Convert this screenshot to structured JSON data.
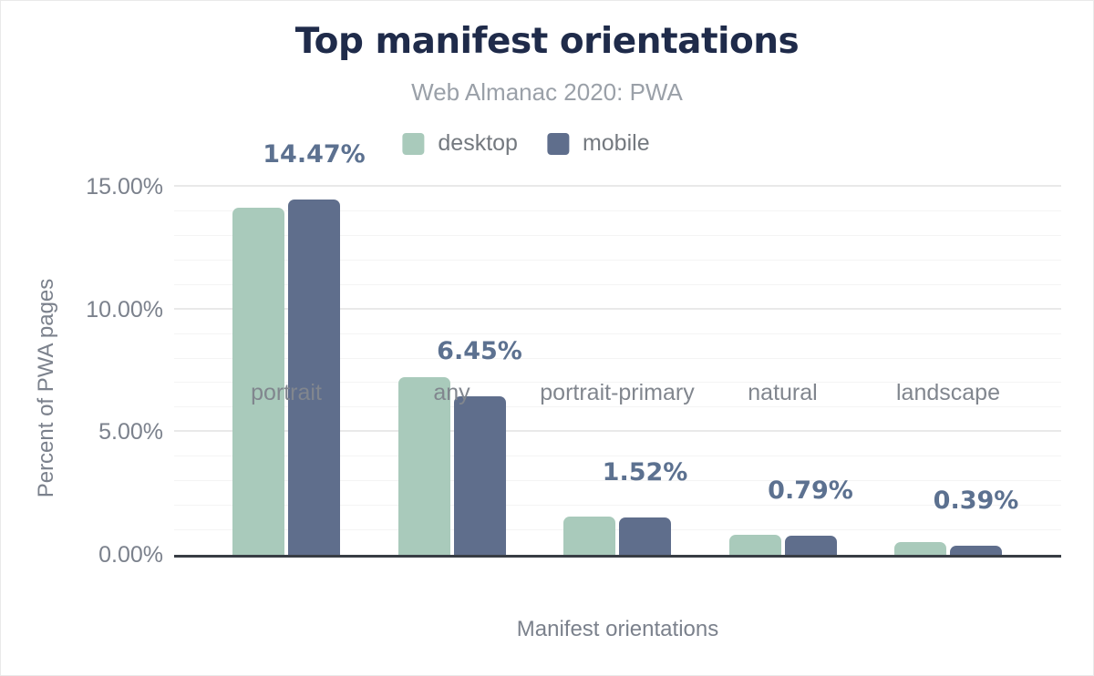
{
  "chart_data": {
    "type": "bar",
    "title": "Top manifest orientations",
    "subtitle": "Web Almanac 2020: PWA",
    "xlabel": "Manifest orientations",
    "ylabel": "Percent of PWA pages",
    "categories": [
      "portrait",
      "any",
      "portrait-primary",
      "natural",
      "landscape"
    ],
    "series": [
      {
        "name": "desktop",
        "color": "#a9cabb",
        "values": [
          14.13,
          7.25,
          1.57,
          0.81,
          0.51
        ]
      },
      {
        "name": "mobile",
        "color": "#5f6e8c",
        "values": [
          14.47,
          6.45,
          1.52,
          0.79,
          0.39
        ]
      }
    ],
    "value_labels": [
      "14.47%",
      "6.45%",
      "1.52%",
      "0.79%",
      "0.39%"
    ],
    "value_labels_series": "mobile",
    "y_ticks": [
      {
        "label": "0.00%",
        "value": 0
      },
      {
        "label": "5.00%",
        "value": 5
      },
      {
        "label": "10.00%",
        "value": 10
      },
      {
        "label": "15.00%",
        "value": 15
      }
    ],
    "ylim": [
      0,
      15
    ],
    "grid": {
      "orientation": "horizontal",
      "minor_step": 1,
      "major_step": 5
    },
    "legend_position": "top-center",
    "colors": {
      "title": "#1f2b4a",
      "subtitle": "#9aa0a8",
      "value_label": "#5c7190",
      "axis_text": "#7b818c",
      "axis_line": "#383d44"
    }
  }
}
